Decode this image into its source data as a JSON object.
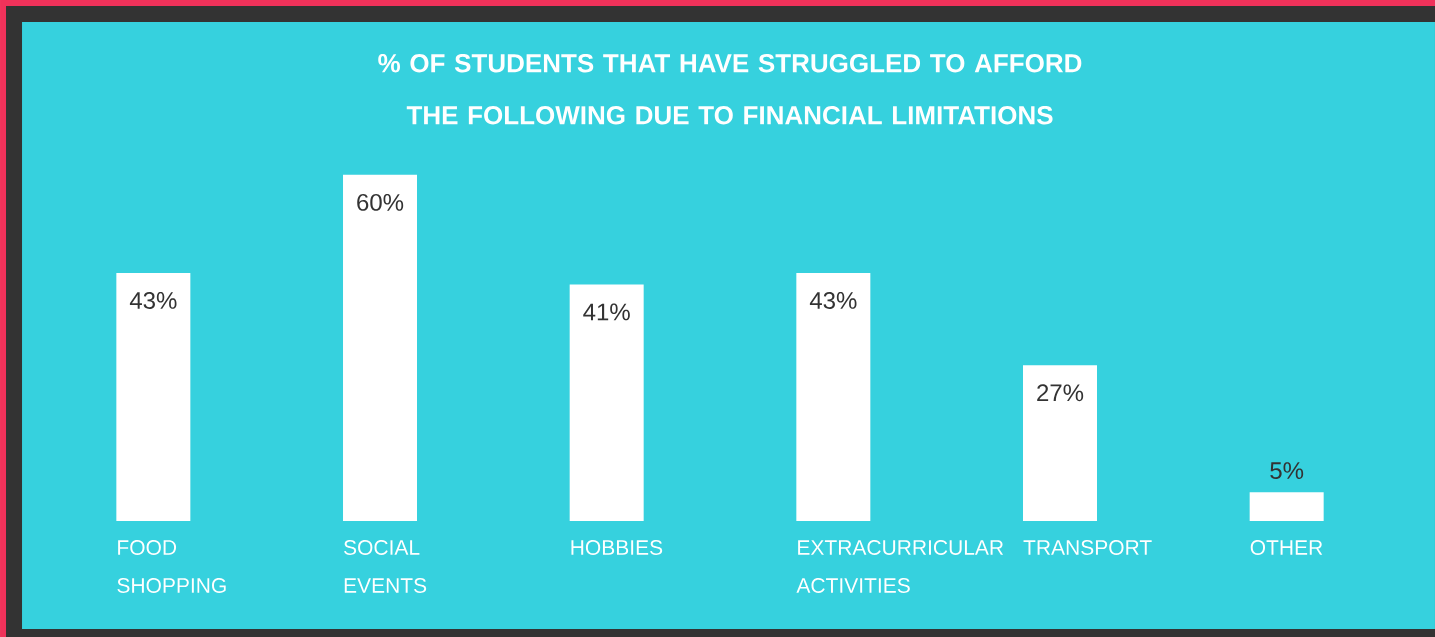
{
  "chart_data": {
    "type": "bar",
    "title": "% OF STUDENTS THAT HAVE STRUGGLED TO AFFORD THE FOLLOWING DUE TO FINANCIAL LIMITATIONS",
    "categories": [
      "FOOD SHOPPING",
      "SOCIAL EVENTS",
      "HOBBIES",
      "EXTRACURRICULAR ACTIVITIES",
      "TRANSPORT",
      "OTHER"
    ],
    "values": [
      43,
      60,
      41,
      43,
      27,
      5
    ],
    "value_labels": [
      "43%",
      "60%",
      "41%",
      "43%",
      "27%",
      "5%"
    ],
    "color": "#ffffff"
  }
}
